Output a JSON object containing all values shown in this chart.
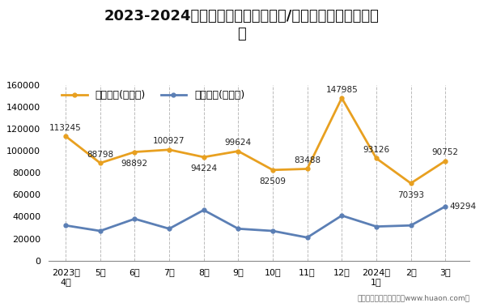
{
  "title_line1": "2023-2024年石家庄市（境内目的地/货源地）进、出口额统",
  "title_line2": "计",
  "x_labels": [
    "2023年\n4月",
    "5月",
    "6月",
    "7月",
    "8月",
    "9月",
    "10月",
    "11月",
    "12月",
    "2024年\n1月",
    "2月",
    "3月"
  ],
  "export_values": [
    113245,
    88798,
    98892,
    100927,
    94224,
    99624,
    82509,
    83488,
    147985,
    93126,
    70393,
    90752
  ],
  "import_values": [
    32000,
    27000,
    38000,
    29000,
    46000,
    29000,
    27000,
    21000,
    41000,
    31000,
    32000,
    49294
  ],
  "export_label": "出口总额(万美元)",
  "import_label": "进口总额(万美元)",
  "export_color": "#E8A020",
  "import_color": "#5B7FB5",
  "ylim": [
    0,
    160000
  ],
  "yticks": [
    0,
    20000,
    40000,
    60000,
    80000,
    100000,
    120000,
    140000,
    160000
  ],
  "background_color": "#ffffff",
  "footer": "制图：华经产业研究院（www.huaon.com）",
  "title_fontsize": 13,
  "legend_fontsize": 9,
  "annotation_fontsize": 7.5,
  "tick_fontsize": 8
}
